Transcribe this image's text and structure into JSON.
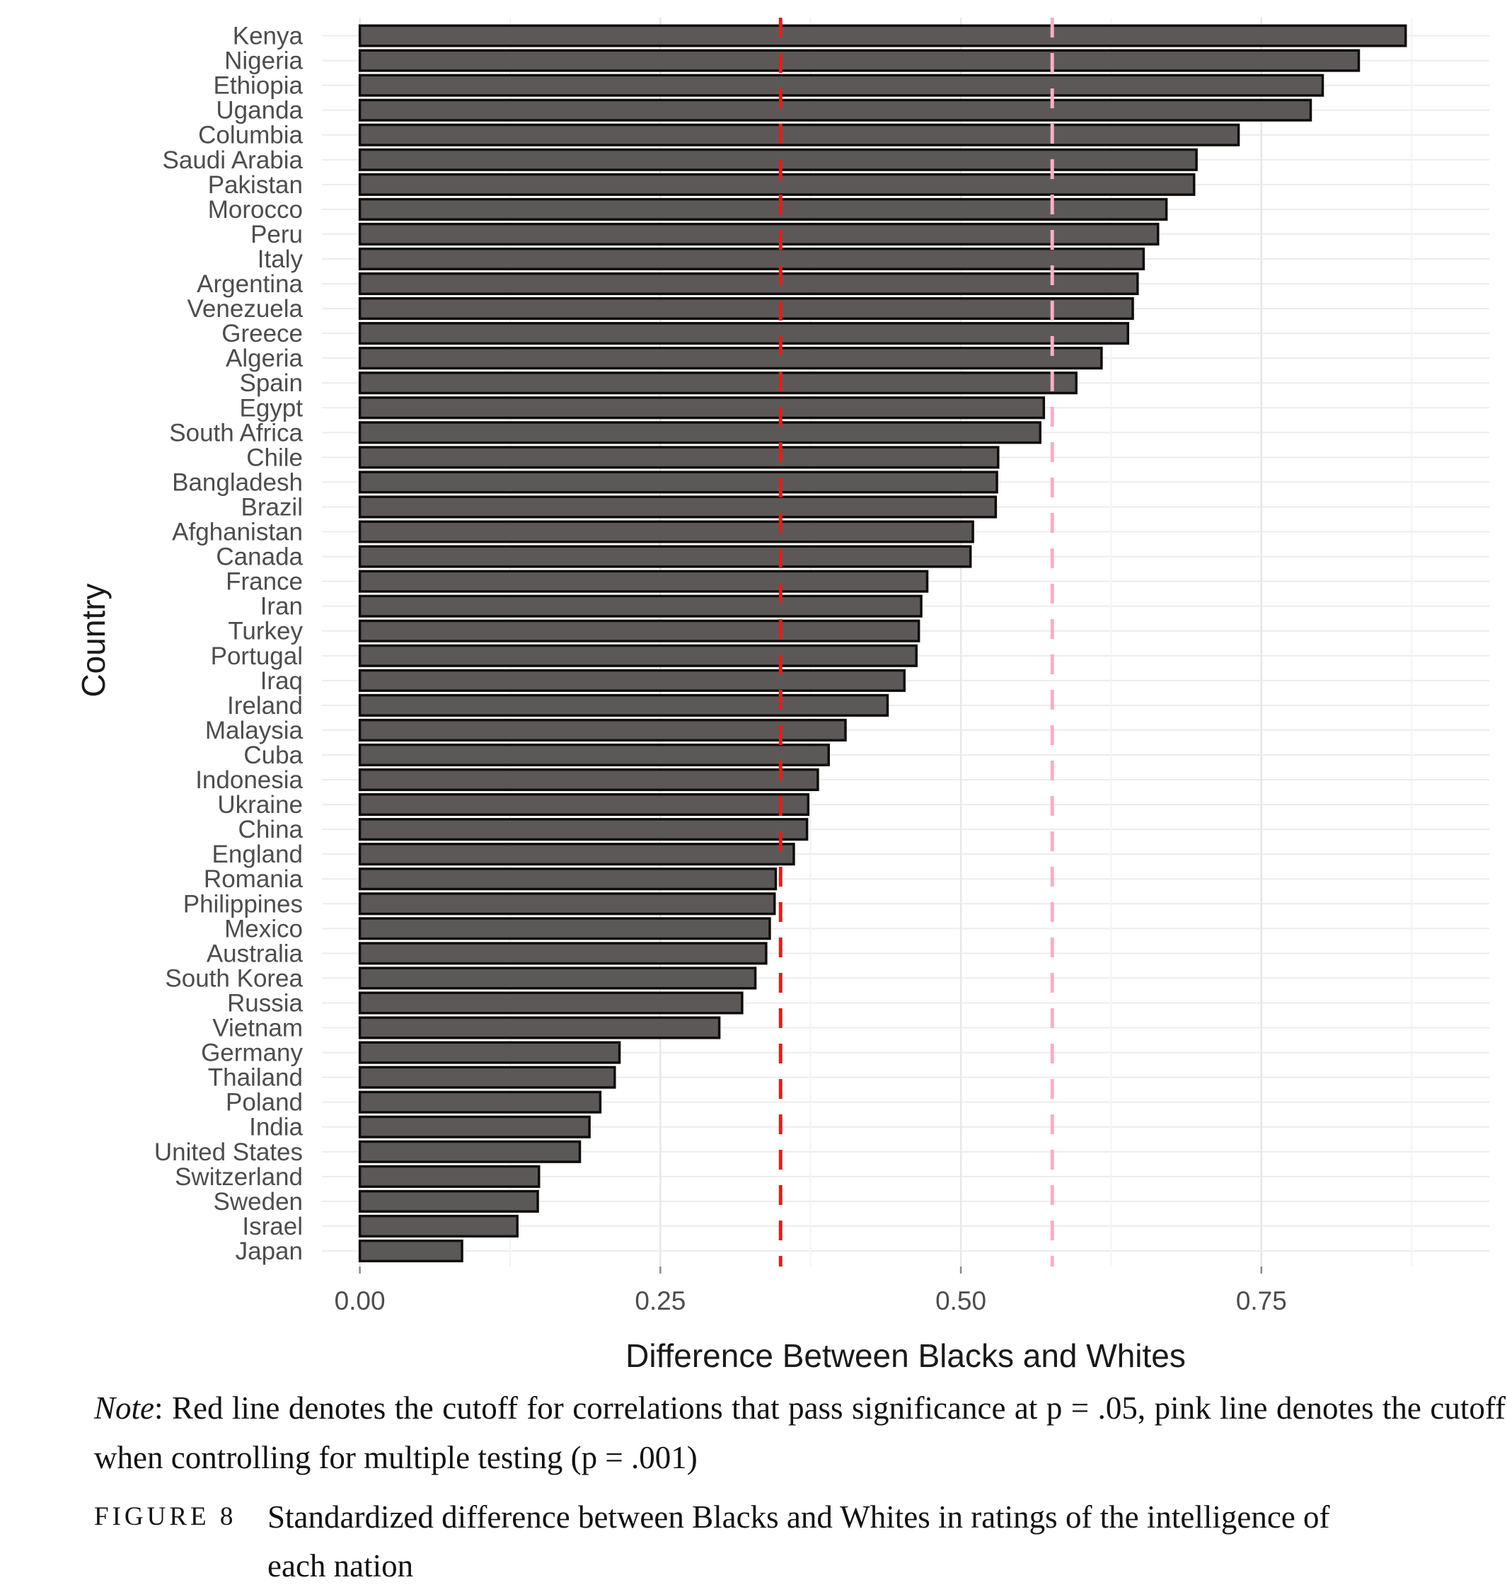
{
  "figure": {
    "note_label": "Note",
    "note_text": ": Red line denotes the cutoff for correlations that pass significance at p = .05, pink line denotes the cutoff when controlling for multiple testing (p = .001)",
    "figure_label": "FIGURE 8",
    "figure_caption": "Standardized difference between Blacks and Whites in ratings of the intelligence of each nation"
  },
  "chart_data": {
    "type": "bar",
    "orientation": "horizontal",
    "title": "",
    "xlabel": "Difference Between Blacks and Whites",
    "ylabel": "Country",
    "xlim": [
      0,
      0.9375
    ],
    "x_ticks": [
      0,
      0.25,
      0.5,
      0.75
    ],
    "x_tick_labels": [
      "0.00",
      "0.25",
      "0.50",
      "0.75"
    ],
    "x_minor_ticks": [
      0.125,
      0.375,
      0.625,
      0.875
    ],
    "grid": true,
    "legend": "none",
    "bar_color": "#5d5858",
    "bar_border_color": "#0f0d0a",
    "axis_text_color": "#4d4d4d",
    "axis_title_color": "#1a1a1a",
    "reference_lines": [
      {
        "name": "significance cutoff p = .05",
        "value": 0.35,
        "color": "#e01f1f",
        "style": "dashed"
      },
      {
        "name": "multiple-testing cutoff p = .001",
        "value": 0.576,
        "color": "#f8aec6",
        "style": "dashed"
      }
    ],
    "categories": [
      "Kenya",
      "Nigeria",
      "Ethiopia",
      "Uganda",
      "Columbia",
      "Saudi Arabia",
      "Pakistan",
      "Morocco",
      "Peru",
      "Italy",
      "Argentina",
      "Venezuela",
      "Greece",
      "Algeria",
      "Spain",
      "Egypt",
      "South Africa",
      "Chile",
      "Bangladesh",
      "Brazil",
      "Afghanistan",
      "Canada",
      "France",
      "Iran",
      "Turkey",
      "Portugal",
      "Iraq",
      "Ireland",
      "Malaysia",
      "Cuba",
      "Indonesia",
      "Ukraine",
      "China",
      "England",
      "Romania",
      "Philippines",
      "Mexico",
      "Australia",
      "South Korea",
      "Russia",
      "Vietnam",
      "Germany",
      "Thailand",
      "Poland",
      "India",
      "United States",
      "Switzerland",
      "Sweden",
      "Israel",
      "Japan"
    ],
    "values": [
      0.87,
      0.831,
      0.801,
      0.791,
      0.731,
      0.696,
      0.694,
      0.671,
      0.664,
      0.652,
      0.647,
      0.643,
      0.639,
      0.617,
      0.596,
      0.569,
      0.566,
      0.531,
      0.53,
      0.529,
      0.51,
      0.508,
      0.472,
      0.467,
      0.465,
      0.463,
      0.453,
      0.439,
      0.404,
      0.39,
      0.381,
      0.373,
      0.372,
      0.361,
      0.346,
      0.345,
      0.341,
      0.338,
      0.329,
      0.318,
      0.299,
      0.216,
      0.212,
      0.2,
      0.191,
      0.183,
      0.149,
      0.148,
      0.131,
      0.085
    ]
  }
}
